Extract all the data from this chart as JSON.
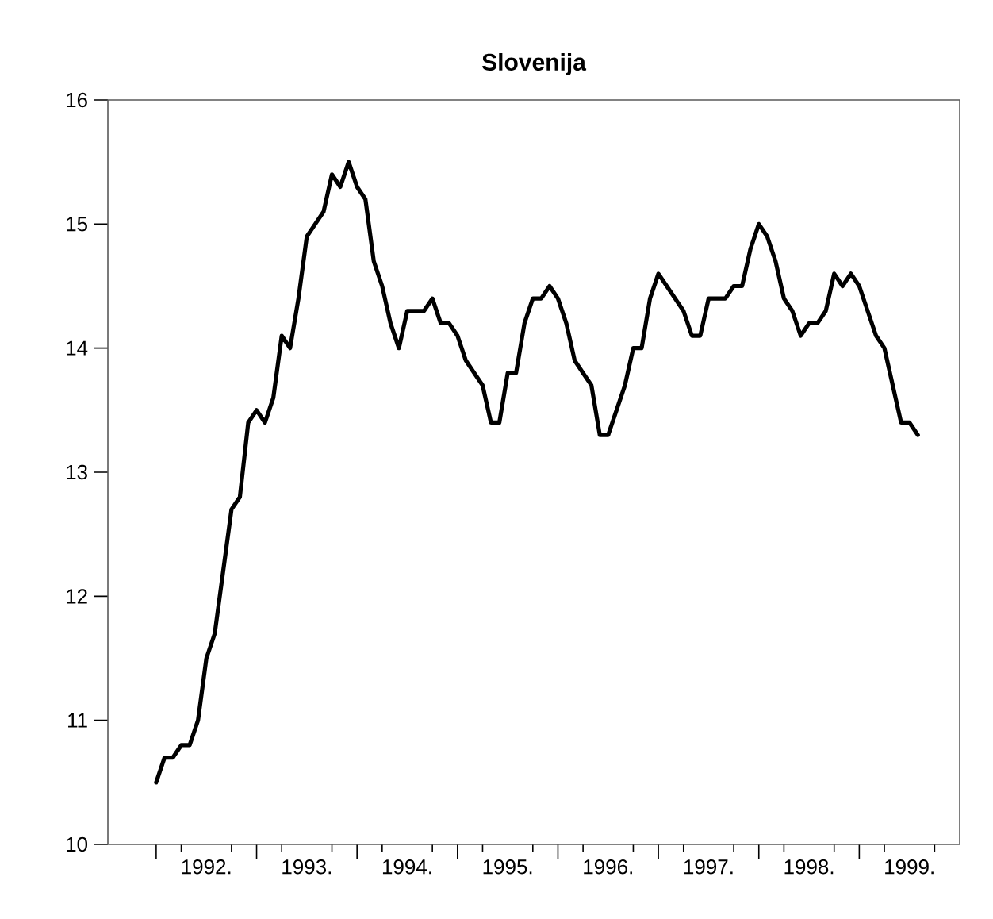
{
  "chart_data": {
    "type": "line",
    "title": "Slovenija",
    "x": [
      "1992-01",
      "1992-02",
      "1992-03",
      "1992-04",
      "1992-05",
      "1992-06",
      "1992-07",
      "1992-08",
      "1992-09",
      "1992-10",
      "1992-11",
      "1992-12",
      "1993-01",
      "1993-02",
      "1993-03",
      "1993-04",
      "1993-05",
      "1993-06",
      "1993-07",
      "1993-08",
      "1993-09",
      "1993-10",
      "1993-11",
      "1993-12",
      "1994-01",
      "1994-02",
      "1994-03",
      "1994-04",
      "1994-05",
      "1994-06",
      "1994-07",
      "1994-08",
      "1994-09",
      "1994-10",
      "1994-11",
      "1994-12",
      "1995-01",
      "1995-02",
      "1995-03",
      "1995-04",
      "1995-05",
      "1995-06",
      "1995-07",
      "1995-08",
      "1995-09",
      "1995-10",
      "1995-11",
      "1995-12",
      "1996-01",
      "1996-02",
      "1996-03",
      "1996-04",
      "1996-05",
      "1996-06",
      "1996-07",
      "1996-08",
      "1996-09",
      "1996-10",
      "1996-11",
      "1996-12",
      "1997-01",
      "1997-02",
      "1997-03",
      "1997-04",
      "1997-05",
      "1997-06",
      "1997-07",
      "1997-08",
      "1997-09",
      "1997-10",
      "1997-11",
      "1997-12",
      "1998-01",
      "1998-02",
      "1998-03",
      "1998-04",
      "1998-05",
      "1998-06",
      "1998-07",
      "1998-08",
      "1998-09",
      "1998-10",
      "1998-11",
      "1998-12",
      "1999-01",
      "1999-02",
      "1999-03",
      "1999-04",
      "1999-05",
      "1999-06",
      "1999-07",
      "1999-08"
    ],
    "series": [
      {
        "color": "#000000",
        "values": [
          10.5,
          10.7,
          10.7,
          10.8,
          10.8,
          11.0,
          11.5,
          11.7,
          12.2,
          12.7,
          12.8,
          13.4,
          13.5,
          13.4,
          13.6,
          14.1,
          14.0,
          14.4,
          14.9,
          15.0,
          15.1,
          15.4,
          15.3,
          15.5,
          15.3,
          15.2,
          14.7,
          14.5,
          14.2,
          14.0,
          14.3,
          14.3,
          14.3,
          14.4,
          14.2,
          14.2,
          14.1,
          13.9,
          13.8,
          13.7,
          13.4,
          13.4,
          13.8,
          13.8,
          14.2,
          14.4,
          14.4,
          14.5,
          14.4,
          14.2,
          13.9,
          13.8,
          13.7,
          13.3,
          13.3,
          13.5,
          13.7,
          14.0,
          14.0,
          14.4,
          14.6,
          14.5,
          14.4,
          14.3,
          14.1,
          14.1,
          14.4,
          14.4,
          14.4,
          14.5,
          14.5,
          14.8,
          15.0,
          14.9,
          14.7,
          14.4,
          14.3,
          14.1,
          14.2,
          14.2,
          14.3,
          14.6,
          14.5,
          14.6,
          14.5,
          14.3,
          14.1,
          14.0,
          13.7,
          13.4,
          13.4,
          13.3
        ]
      }
    ],
    "line_style": "solid",
    "xlim": [
      "1991-07-08",
      "2000-01-01"
    ],
    "xticks": [
      {
        "value": "1992-01",
        "label": null
      },
      {
        "value": "1992-04",
        "label": null
      },
      {
        "value": "1992-07",
        "label": "1992."
      },
      {
        "value": "1992-10",
        "label": null
      },
      {
        "value": "1993-01",
        "label": null
      },
      {
        "value": "1993-04",
        "label": null
      },
      {
        "value": "1993-07",
        "label": "1993."
      },
      {
        "value": "1993-10",
        "label": null
      },
      {
        "value": "1994-01",
        "label": null
      },
      {
        "value": "1994-04",
        "label": null
      },
      {
        "value": "1994-07",
        "label": "1994."
      },
      {
        "value": "1994-10",
        "label": null
      },
      {
        "value": "1995-01",
        "label": null
      },
      {
        "value": "1995-04",
        "label": null
      },
      {
        "value": "1995-07",
        "label": "1995."
      },
      {
        "value": "1995-10",
        "label": null
      },
      {
        "value": "1996-01",
        "label": null
      },
      {
        "value": "1996-04",
        "label": null
      },
      {
        "value": "1996-07",
        "label": "1996."
      },
      {
        "value": "1996-10",
        "label": null
      },
      {
        "value": "1997-01",
        "label": null
      },
      {
        "value": "1997-04",
        "label": null
      },
      {
        "value": "1997-07",
        "label": "1997."
      },
      {
        "value": "1997-10",
        "label": null
      },
      {
        "value": "1998-01",
        "label": null
      },
      {
        "value": "1998-04",
        "label": null
      },
      {
        "value": "1998-07",
        "label": "1998."
      },
      {
        "value": "1998-10",
        "label": null
      },
      {
        "value": "1999-01",
        "label": null
      },
      {
        "value": "1999-04",
        "label": null
      },
      {
        "value": "1999-07",
        "label": "1999."
      },
      {
        "value": "1999-10",
        "label": null
      }
    ],
    "ylim": [
      10,
      16
    ],
    "yticks": [
      10,
      11,
      12,
      13,
      14,
      15,
      16
    ]
  }
}
